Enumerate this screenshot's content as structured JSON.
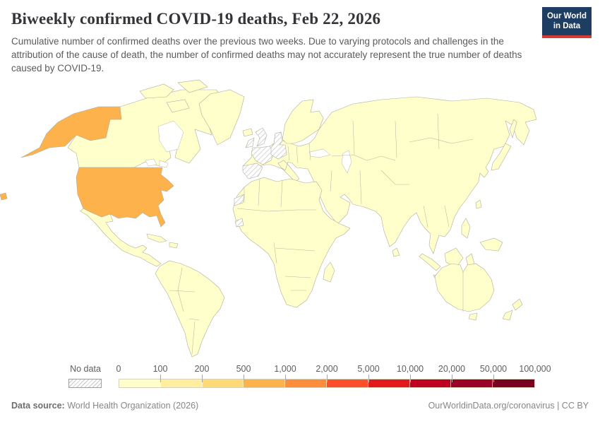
{
  "header": {
    "title": "Biweekly confirmed COVID-19 deaths, Feb 22, 2026",
    "subtitle": "Cumulative number of confirmed deaths over the previous two weeks. Due to varying protocols and challenges in the attribution of the cause of death, the number of confirmed deaths may not accurately represent the true number of deaths caused by COVID-19.",
    "logo": {
      "line1": "Our World",
      "line2": "in Data"
    }
  },
  "chart_data": {
    "type": "choropleth_map",
    "title": "Biweekly confirmed COVID-19 deaths, Feb 22, 2026",
    "date": "Feb 22, 2026",
    "legend": {
      "no_data_label": "No data",
      "tick_labels": [
        "0",
        "100",
        "200",
        "500",
        "1,000",
        "2,000",
        "5,000",
        "10,000",
        "20,000",
        "50,000",
        "100,000"
      ],
      "bin_colors": [
        "#ffffcc",
        "#ffeda0",
        "#fed976",
        "#feb24c",
        "#fd8d3c",
        "#fc4e2a",
        "#e31a1c",
        "#c00023",
        "#9b0026",
        "#7a0022"
      ]
    },
    "regions": {
      "default": "#ffffcc",
      "united-states": "#feb24c",
      "united-kingdom": "no-data",
      "ireland": "no-data",
      "france": "no-data",
      "spain-portugal": "no-data",
      "germany-denmark": "no-data",
      "western-sahara": "no-data",
      "guinea": "no-data"
    },
    "notes": {
      "united-states_bin": "500–1,000",
      "most_countries_bin": "0–100"
    }
  },
  "footer": {
    "datasource_label": "Data source:",
    "datasource": " World Health Organization (2026)",
    "link": "OurWorldinData.org/coronavirus",
    "separator": " | ",
    "license": "CC BY"
  }
}
